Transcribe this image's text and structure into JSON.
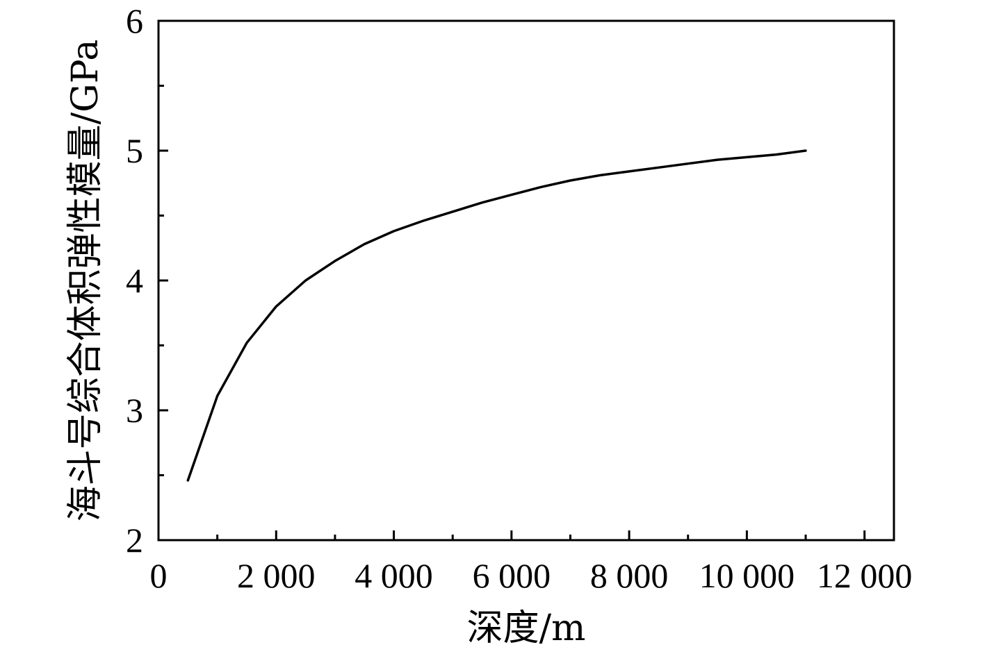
{
  "chart_data": {
    "type": "line",
    "xlabel": "深度/m",
    "ylabel": "海斗号综合体积弹性模量/GPa",
    "xlim": [
      0,
      12500
    ],
    "ylim": [
      2,
      6
    ],
    "x_ticks": [
      0,
      2000,
      4000,
      6000,
      8000,
      10000,
      12000
    ],
    "x_tick_labels": [
      "0",
      "2 000",
      "4 000",
      "6 000",
      "8 000",
      "10 000",
      "12 000"
    ],
    "x_minor_ticks": [
      1000,
      3000,
      5000,
      7000,
      9000,
      11000
    ],
    "y_ticks": [
      2,
      3,
      4,
      5,
      6
    ],
    "y_tick_labels": [
      "2",
      "3",
      "4",
      "5",
      "6"
    ],
    "y_minor_ticks": [
      2.5,
      3.5,
      4.5,
      5.5
    ],
    "grid": false,
    "series": [
      {
        "x": [
          500,
          1000,
          1500,
          2000,
          2500,
          3000,
          3500,
          4000,
          4500,
          5000,
          5500,
          6000,
          6500,
          7000,
          7500,
          8000,
          8500,
          9000,
          9500,
          10000,
          10500,
          11000
        ],
        "values": [
          2.46,
          3.11,
          3.52,
          3.8,
          4.0,
          4.15,
          4.28,
          4.38,
          4.46,
          4.53,
          4.6,
          4.66,
          4.72,
          4.77,
          4.81,
          4.84,
          4.87,
          4.9,
          4.93,
          4.95,
          4.97,
          5.0
        ]
      }
    ]
  }
}
